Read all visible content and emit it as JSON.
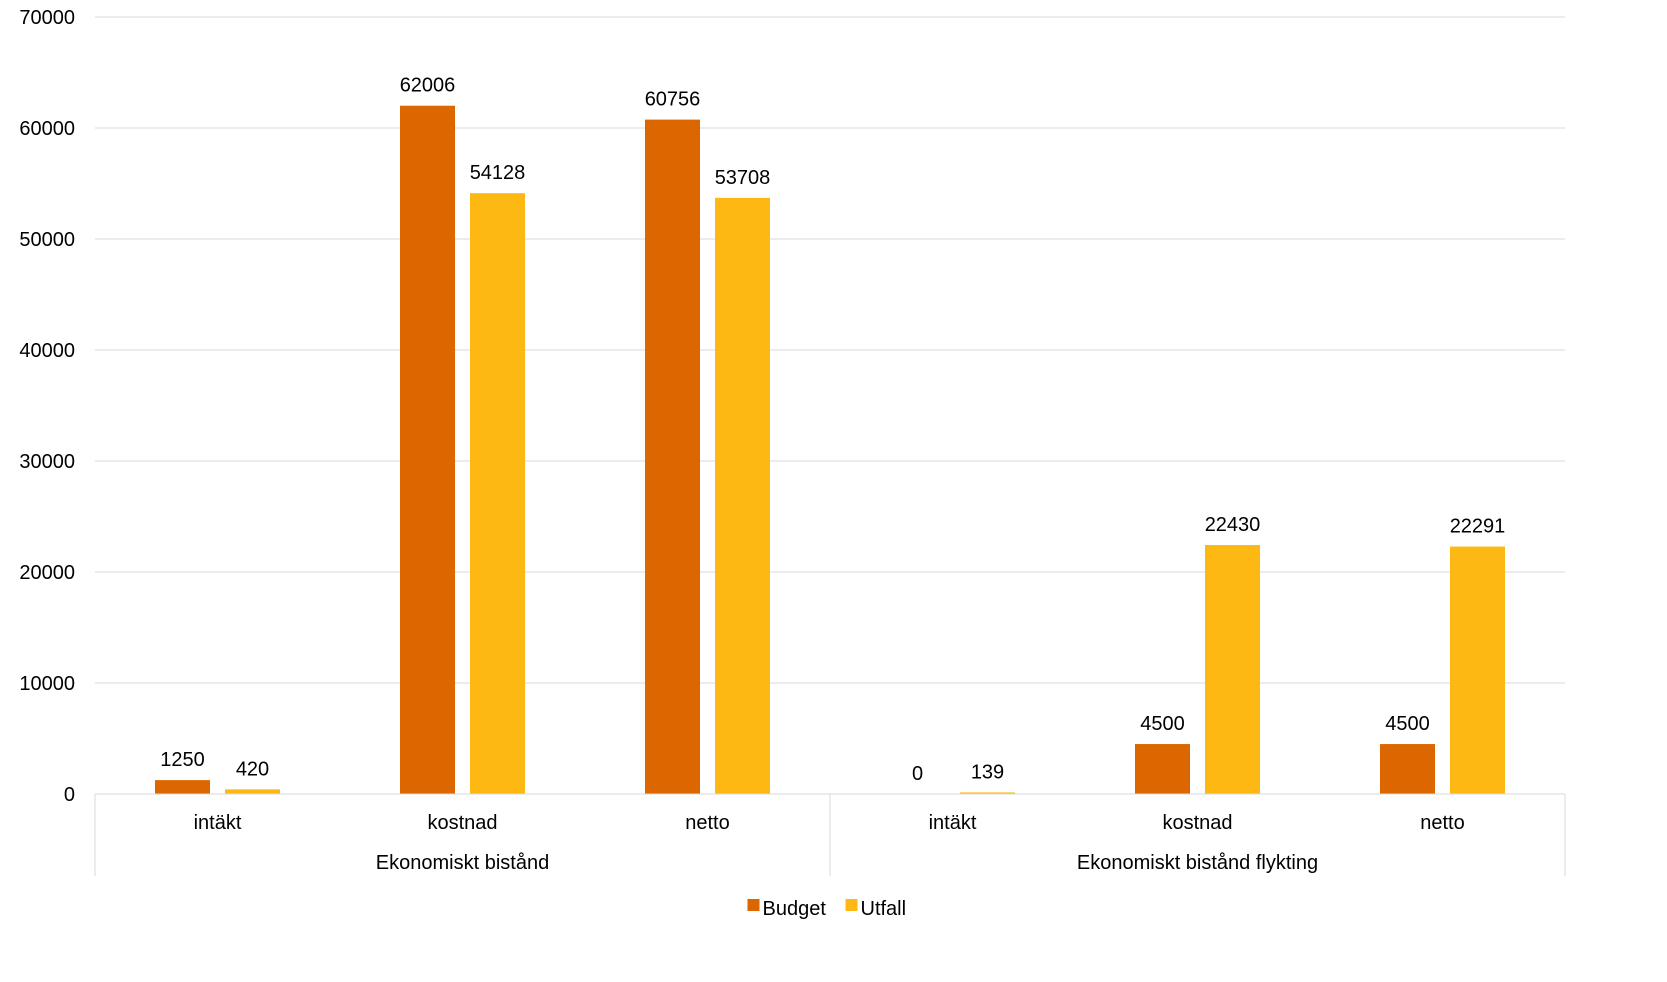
{
  "chart_data": {
    "type": "bar",
    "title": "",
    "xlabel": "",
    "ylabel": "",
    "ylim": [
      0,
      70000
    ],
    "yticks": [
      0,
      10000,
      20000,
      30000,
      40000,
      50000,
      60000,
      70000
    ],
    "grid": true,
    "legend_position": "bottom",
    "groups": [
      {
        "label": "Ekonomiskt bistånd",
        "categories": [
          "intäkt",
          "kostnad",
          "netto"
        ]
      },
      {
        "label": "Ekonomiskt bistånd flykting",
        "categories": [
          "intäkt",
          "kostnad",
          "netto"
        ]
      }
    ],
    "series": [
      {
        "name": "Budget",
        "color": "#DC6600",
        "values": [
          1250,
          62006,
          60756,
          0,
          4500,
          4500
        ]
      },
      {
        "name": "Utfall",
        "color": "#FDB813",
        "values": [
          420,
          54128,
          53708,
          139,
          22430,
          22291
        ]
      }
    ]
  }
}
